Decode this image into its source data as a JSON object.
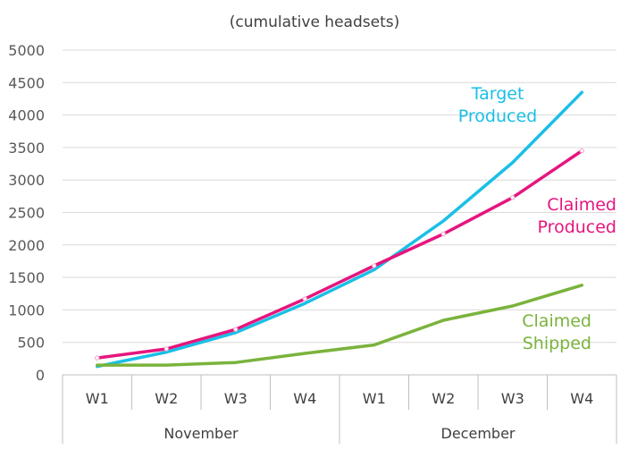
{
  "chart_data": {
    "type": "line",
    "subtitle": "(cumulative headsets)",
    "categories": [
      "W1",
      "W2",
      "W3",
      "W4",
      "W1",
      "W2",
      "W3",
      "W4"
    ],
    "groups": [
      {
        "label": "November",
        "span": 4
      },
      {
        "label": "December",
        "span": 4
      }
    ],
    "ylim": [
      0,
      5000
    ],
    "yticks": [
      0,
      500,
      1000,
      1500,
      2000,
      2500,
      3000,
      3500,
      4000,
      4500,
      5000
    ],
    "grid": true,
    "series": [
      {
        "name_lines": [
          "Target",
          "Produced"
        ],
        "color": "#1ABFE6",
        "values": [
          130,
          350,
          650,
          1100,
          1620,
          2370,
          3270,
          4350
        ],
        "markers": false
      },
      {
        "name_lines": [
          "Claimed",
          "Produced"
        ],
        "color": "#E6157E",
        "values": [
          260,
          400,
          700,
          1170,
          1680,
          2170,
          2730,
          3450
        ],
        "markers": true
      },
      {
        "name_lines": [
          "Claimed",
          "Shipped"
        ],
        "color": "#7AB33C",
        "values": [
          150,
          150,
          190,
          330,
          460,
          840,
          1060,
          1380
        ],
        "markers": false
      }
    ]
  }
}
